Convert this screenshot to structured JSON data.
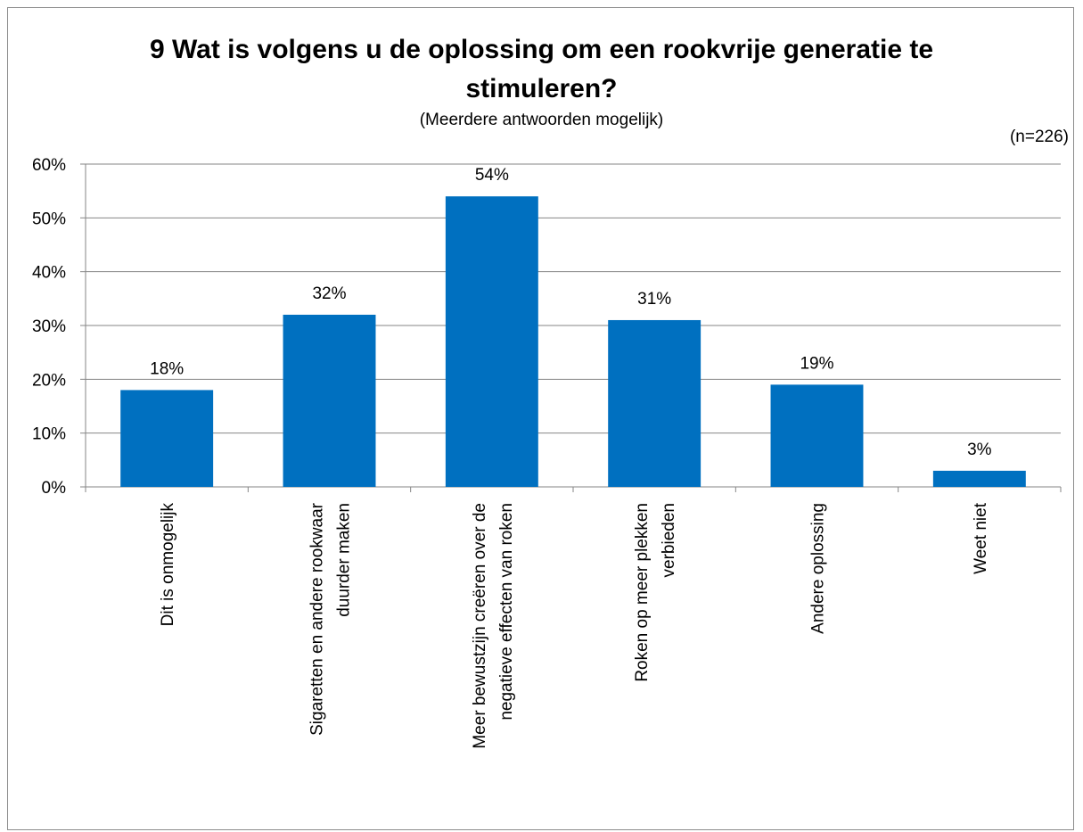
{
  "chart_data": {
    "type": "bar",
    "title_lines": [
      "9 Wat is volgens u de oplossing om een rookvrije generatie te",
      "stimuleren?"
    ],
    "subtitle": "(Meerdere antwoorden mogelijk)",
    "note": "(n=226)",
    "categories": [
      [
        "Dit is onmogelijk"
      ],
      [
        "Sigaretten en andere rookwaar",
        "duurder maken"
      ],
      [
        "Meer bewustzijn creëren over de",
        "negatieve effecten van roken"
      ],
      [
        "Roken op meer plekken",
        "verbieden"
      ],
      [
        "Andere oplossing"
      ],
      [
        "Weet niet"
      ]
    ],
    "values": [
      18,
      32,
      54,
      31,
      19,
      3
    ],
    "data_labels": [
      "18%",
      "32%",
      "54%",
      "31%",
      "19%",
      "3%"
    ],
    "yticks": [
      "0%",
      "10%",
      "20%",
      "30%",
      "40%",
      "50%",
      "60%"
    ],
    "ylim": [
      0,
      60
    ],
    "grid": true,
    "legend": "none",
    "bar_color": "#0070C0"
  }
}
